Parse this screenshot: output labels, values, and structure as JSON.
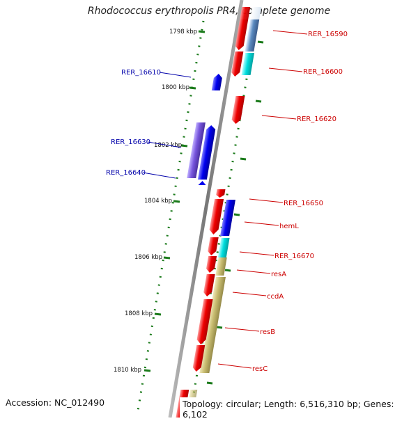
{
  "title": "Rhodococcus erythropolis PR4, complete genome",
  "accession": "Accession: NC_012490",
  "topology": "Topology: circular; Length: 6,516,310 bp; Genes: 6,102",
  "ticks": [
    "1798 kbp",
    "1800 kbp",
    "1802 kbp",
    "1804 kbp",
    "1806 kbp",
    "1808 kbp",
    "1810 kbp"
  ],
  "genes_left": [
    "RER_16610",
    "RER_16630",
    "RER_16640"
  ],
  "genes_right": [
    "RER_16590",
    "RER_16600",
    "RER_16620",
    "RER_16650",
    "hemL",
    "RER_16670",
    "resA",
    "ccdA",
    "resB",
    "resC"
  ],
  "colors": {
    "left_label": "#0000aa",
    "right_label": "#cc0000",
    "tick": "#1a7a1a",
    "red": "#ee0000",
    "blue": "#0000ee",
    "cyan": "#00dddd",
    "olive": "#c8bc70",
    "purple": "#7755dd"
  }
}
